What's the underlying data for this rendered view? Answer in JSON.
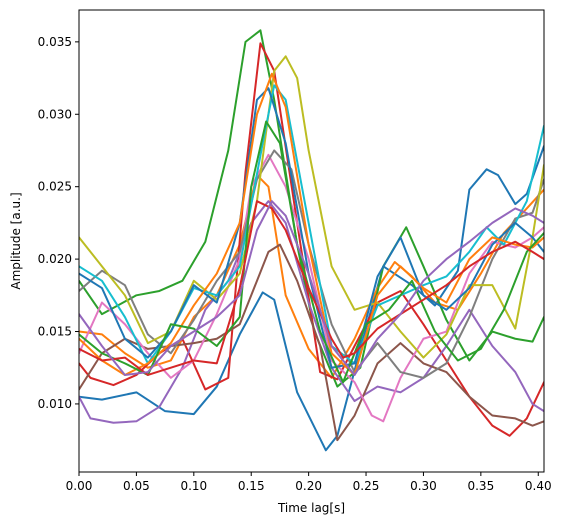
{
  "chart_data": {
    "type": "line",
    "title": "",
    "xlabel": "Time lag[s]",
    "ylabel": "Amplitude [a.u.]",
    "xlim": [
      0.0,
      0.405
    ],
    "ylim": [
      0.0053,
      0.0372
    ],
    "xticks": [
      0.0,
      0.05,
      0.1,
      0.15,
      0.2,
      0.25,
      0.3,
      0.35,
      0.4
    ],
    "xtick_labels": [
      "0.00",
      "0.05",
      "0.10",
      "0.15",
      "0.20",
      "0.25",
      "0.30",
      "0.35",
      "0.40"
    ],
    "yticks": [
      0.01,
      0.015,
      0.02,
      0.025,
      0.03,
      0.035
    ],
    "ytick_labels": [
      "0.010",
      "0.015",
      "0.020",
      "0.025",
      "0.030",
      "0.035"
    ],
    "grid": false,
    "legend": "none",
    "series": [
      {
        "color": "#1f77b4",
        "x": [
          0.0,
          0.02,
          0.05,
          0.075,
          0.1,
          0.12,
          0.14,
          0.16,
          0.17,
          0.19,
          0.215,
          0.225,
          0.245,
          0.265,
          0.29,
          0.31,
          0.33,
          0.34,
          0.355,
          0.365,
          0.38,
          0.39,
          0.405
        ],
        "y": [
          0.0105,
          0.0103,
          0.0108,
          0.0095,
          0.0093,
          0.0112,
          0.0148,
          0.0177,
          0.0172,
          0.0108,
          0.0068,
          0.0078,
          0.0138,
          0.0195,
          0.0182,
          0.0168,
          0.0192,
          0.0248,
          0.0262,
          0.0258,
          0.0238,
          0.0245,
          0.0278
        ]
      },
      {
        "color": "#ff7f0e",
        "x": [
          0.0,
          0.02,
          0.04,
          0.06,
          0.08,
          0.1,
          0.12,
          0.14,
          0.155,
          0.165,
          0.18,
          0.2,
          0.22,
          0.24,
          0.26,
          0.275,
          0.29,
          0.31,
          0.33,
          0.35,
          0.37,
          0.39,
          0.405
        ],
        "y": [
          0.015,
          0.0148,
          0.0135,
          0.0125,
          0.013,
          0.016,
          0.0175,
          0.021,
          0.0258,
          0.025,
          0.0175,
          0.0138,
          0.0118,
          0.0145,
          0.018,
          0.0198,
          0.0188,
          0.017,
          0.0165,
          0.019,
          0.0218,
          0.0235,
          0.0248
        ]
      },
      {
        "color": "#2ca02c",
        "x": [
          0.0,
          0.02,
          0.05,
          0.07,
          0.09,
          0.11,
          0.13,
          0.145,
          0.158,
          0.17,
          0.19,
          0.205,
          0.225,
          0.245,
          0.265,
          0.285,
          0.3,
          0.32,
          0.34,
          0.36,
          0.38,
          0.395,
          0.405
        ],
        "y": [
          0.0185,
          0.0162,
          0.0175,
          0.0178,
          0.0185,
          0.0212,
          0.0275,
          0.035,
          0.0358,
          0.031,
          0.021,
          0.015,
          0.0112,
          0.0125,
          0.0195,
          0.0222,
          0.0195,
          0.0158,
          0.013,
          0.015,
          0.0145,
          0.0143,
          0.016
        ]
      },
      {
        "color": "#d62728",
        "x": [
          0.0,
          0.01,
          0.03,
          0.05,
          0.07,
          0.09,
          0.11,
          0.13,
          0.145,
          0.158,
          0.17,
          0.19,
          0.21,
          0.225,
          0.24,
          0.26,
          0.28,
          0.3,
          0.32,
          0.34,
          0.36,
          0.375,
          0.39,
          0.405
        ],
        "y": [
          0.0128,
          0.0118,
          0.0113,
          0.012,
          0.0135,
          0.0145,
          0.011,
          0.0118,
          0.026,
          0.0349,
          0.033,
          0.0225,
          0.0122,
          0.0117,
          0.014,
          0.017,
          0.0178,
          0.0155,
          0.013,
          0.0105,
          0.0085,
          0.0078,
          0.009,
          0.0115
        ]
      },
      {
        "color": "#9467bd",
        "x": [
          0.0,
          0.01,
          0.03,
          0.05,
          0.07,
          0.09,
          0.11,
          0.13,
          0.15,
          0.165,
          0.18,
          0.2,
          0.22,
          0.24,
          0.26,
          0.28,
          0.3,
          0.32,
          0.34,
          0.36,
          0.38,
          0.395,
          0.405
        ],
        "y": [
          0.0105,
          0.009,
          0.0087,
          0.0088,
          0.0098,
          0.0125,
          0.0165,
          0.0185,
          0.0225,
          0.024,
          0.0225,
          0.017,
          0.0125,
          0.0102,
          0.0112,
          0.0108,
          0.0118,
          0.014,
          0.0165,
          0.014,
          0.0122,
          0.01,
          0.0095
        ]
      },
      {
        "color": "#8c564b",
        "x": [
          0.0,
          0.02,
          0.04,
          0.06,
          0.08,
          0.1,
          0.12,
          0.14,
          0.155,
          0.165,
          0.175,
          0.19,
          0.21,
          0.225,
          0.24,
          0.26,
          0.28,
          0.3,
          0.32,
          0.34,
          0.36,
          0.38,
          0.395,
          0.405
        ],
        "y": [
          0.011,
          0.0135,
          0.0145,
          0.0138,
          0.014,
          0.0142,
          0.0145,
          0.0155,
          0.0185,
          0.0205,
          0.021,
          0.0185,
          0.014,
          0.0075,
          0.0092,
          0.0128,
          0.0142,
          0.0128,
          0.0122,
          0.0105,
          0.0092,
          0.009,
          0.0085,
          0.0088
        ]
      },
      {
        "color": "#e377c2",
        "x": [
          0.0,
          0.02,
          0.04,
          0.06,
          0.08,
          0.1,
          0.12,
          0.14,
          0.15,
          0.165,
          0.18,
          0.2,
          0.22,
          0.24,
          0.255,
          0.265,
          0.28,
          0.3,
          0.32,
          0.34,
          0.36,
          0.38,
          0.395,
          0.405
        ],
        "y": [
          0.0135,
          0.017,
          0.0155,
          0.0135,
          0.0118,
          0.013,
          0.0162,
          0.02,
          0.025,
          0.0272,
          0.025,
          0.02,
          0.013,
          0.0115,
          0.0092,
          0.0088,
          0.0118,
          0.0145,
          0.015,
          0.019,
          0.0212,
          0.0208,
          0.0215,
          0.0222
        ]
      },
      {
        "color": "#7f7f7f",
        "x": [
          0.0,
          0.02,
          0.04,
          0.06,
          0.08,
          0.1,
          0.12,
          0.14,
          0.155,
          0.17,
          0.185,
          0.2,
          0.22,
          0.24,
          0.26,
          0.28,
          0.3,
          0.32,
          0.34,
          0.36,
          0.38,
          0.395,
          0.405
        ],
        "y": [
          0.0178,
          0.0192,
          0.0182,
          0.0148,
          0.0135,
          0.0158,
          0.0185,
          0.0205,
          0.0255,
          0.0275,
          0.0262,
          0.021,
          0.0155,
          0.0122,
          0.0142,
          0.0122,
          0.0118,
          0.0128,
          0.016,
          0.02,
          0.0228,
          0.0232,
          0.0255
        ]
      },
      {
        "color": "#bcbd22",
        "x": [
          0.0,
          0.02,
          0.04,
          0.06,
          0.08,
          0.1,
          0.12,
          0.14,
          0.155,
          0.17,
          0.18,
          0.19,
          0.2,
          0.22,
          0.24,
          0.26,
          0.28,
          0.3,
          0.32,
          0.34,
          0.36,
          0.38,
          0.395,
          0.405
        ],
        "y": [
          0.0215,
          0.0195,
          0.0175,
          0.0142,
          0.015,
          0.0185,
          0.0172,
          0.019,
          0.024,
          0.033,
          0.034,
          0.0325,
          0.0275,
          0.0195,
          0.0165,
          0.017,
          0.015,
          0.0132,
          0.0148,
          0.0182,
          0.0182,
          0.0152,
          0.0215,
          0.0265
        ]
      },
      {
        "color": "#17becf",
        "x": [
          0.0,
          0.02,
          0.04,
          0.06,
          0.08,
          0.1,
          0.12,
          0.14,
          0.16,
          0.17,
          0.18,
          0.2,
          0.22,
          0.24,
          0.26,
          0.28,
          0.3,
          0.32,
          0.34,
          0.355,
          0.37,
          0.39,
          0.405
        ],
        "y": [
          0.0195,
          0.0185,
          0.016,
          0.0128,
          0.015,
          0.018,
          0.0175,
          0.0195,
          0.028,
          0.032,
          0.031,
          0.0225,
          0.014,
          0.0128,
          0.0168,
          0.0175,
          0.0182,
          0.0188,
          0.0205,
          0.0222,
          0.021,
          0.024,
          0.0292
        ]
      },
      {
        "color": "#1f77b4",
        "x": [
          0.0,
          0.02,
          0.04,
          0.06,
          0.08,
          0.1,
          0.12,
          0.14,
          0.155,
          0.165,
          0.18,
          0.2,
          0.22,
          0.24,
          0.26,
          0.28,
          0.3,
          0.32,
          0.34,
          0.36,
          0.38,
          0.395,
          0.405
        ],
        "y": [
          0.019,
          0.018,
          0.0145,
          0.0132,
          0.015,
          0.0182,
          0.017,
          0.0225,
          0.031,
          0.0318,
          0.028,
          0.019,
          0.0125,
          0.0128,
          0.0188,
          0.0215,
          0.0175,
          0.0165,
          0.018,
          0.021,
          0.0225,
          0.0215,
          0.0205
        ]
      },
      {
        "color": "#ff7f0e",
        "x": [
          0.0,
          0.02,
          0.04,
          0.06,
          0.08,
          0.1,
          0.12,
          0.14,
          0.155,
          0.168,
          0.18,
          0.2,
          0.22,
          0.24,
          0.26,
          0.28,
          0.3,
          0.32,
          0.34,
          0.36,
          0.38,
          0.395,
          0.405
        ],
        "y": [
          0.0145,
          0.013,
          0.012,
          0.0128,
          0.0142,
          0.0168,
          0.019,
          0.0225,
          0.03,
          0.0328,
          0.0305,
          0.021,
          0.0135,
          0.012,
          0.0175,
          0.0195,
          0.018,
          0.017,
          0.02,
          0.0215,
          0.021,
          0.0208,
          0.0215
        ]
      },
      {
        "color": "#2ca02c",
        "x": [
          0.0,
          0.02,
          0.04,
          0.06,
          0.08,
          0.1,
          0.12,
          0.14,
          0.15,
          0.163,
          0.175,
          0.19,
          0.21,
          0.23,
          0.25,
          0.27,
          0.29,
          0.31,
          0.33,
          0.35,
          0.37,
          0.39,
          0.405
        ],
        "y": [
          0.0148,
          0.0135,
          0.0128,
          0.012,
          0.0155,
          0.0152,
          0.014,
          0.016,
          0.025,
          0.0295,
          0.028,
          0.021,
          0.015,
          0.0115,
          0.0155,
          0.0165,
          0.0185,
          0.015,
          0.013,
          0.0138,
          0.0165,
          0.0205,
          0.0218
        ]
      },
      {
        "color": "#d62728",
        "x": [
          0.0,
          0.02,
          0.04,
          0.06,
          0.08,
          0.1,
          0.12,
          0.14,
          0.155,
          0.168,
          0.18,
          0.2,
          0.22,
          0.23,
          0.24,
          0.26,
          0.28,
          0.3,
          0.32,
          0.34,
          0.36,
          0.38,
          0.395,
          0.405
        ],
        "y": [
          0.0138,
          0.013,
          0.0132,
          0.012,
          0.0125,
          0.013,
          0.0128,
          0.018,
          0.024,
          0.0235,
          0.022,
          0.018,
          0.0145,
          0.0132,
          0.0135,
          0.0152,
          0.0162,
          0.0172,
          0.0182,
          0.0195,
          0.0205,
          0.0212,
          0.0205,
          0.02
        ]
      },
      {
        "color": "#9467bd",
        "x": [
          0.0,
          0.02,
          0.04,
          0.06,
          0.08,
          0.1,
          0.12,
          0.14,
          0.155,
          0.168,
          0.18,
          0.2,
          0.22,
          0.24,
          0.26,
          0.28,
          0.3,
          0.32,
          0.34,
          0.36,
          0.38,
          0.395,
          0.405
        ],
        "y": [
          0.0162,
          0.014,
          0.012,
          0.0122,
          0.014,
          0.015,
          0.016,
          0.0175,
          0.022,
          0.024,
          0.023,
          0.019,
          0.014,
          0.012,
          0.0145,
          0.0162,
          0.0185,
          0.02,
          0.0212,
          0.0225,
          0.0235,
          0.023,
          0.0225
        ]
      }
    ]
  }
}
